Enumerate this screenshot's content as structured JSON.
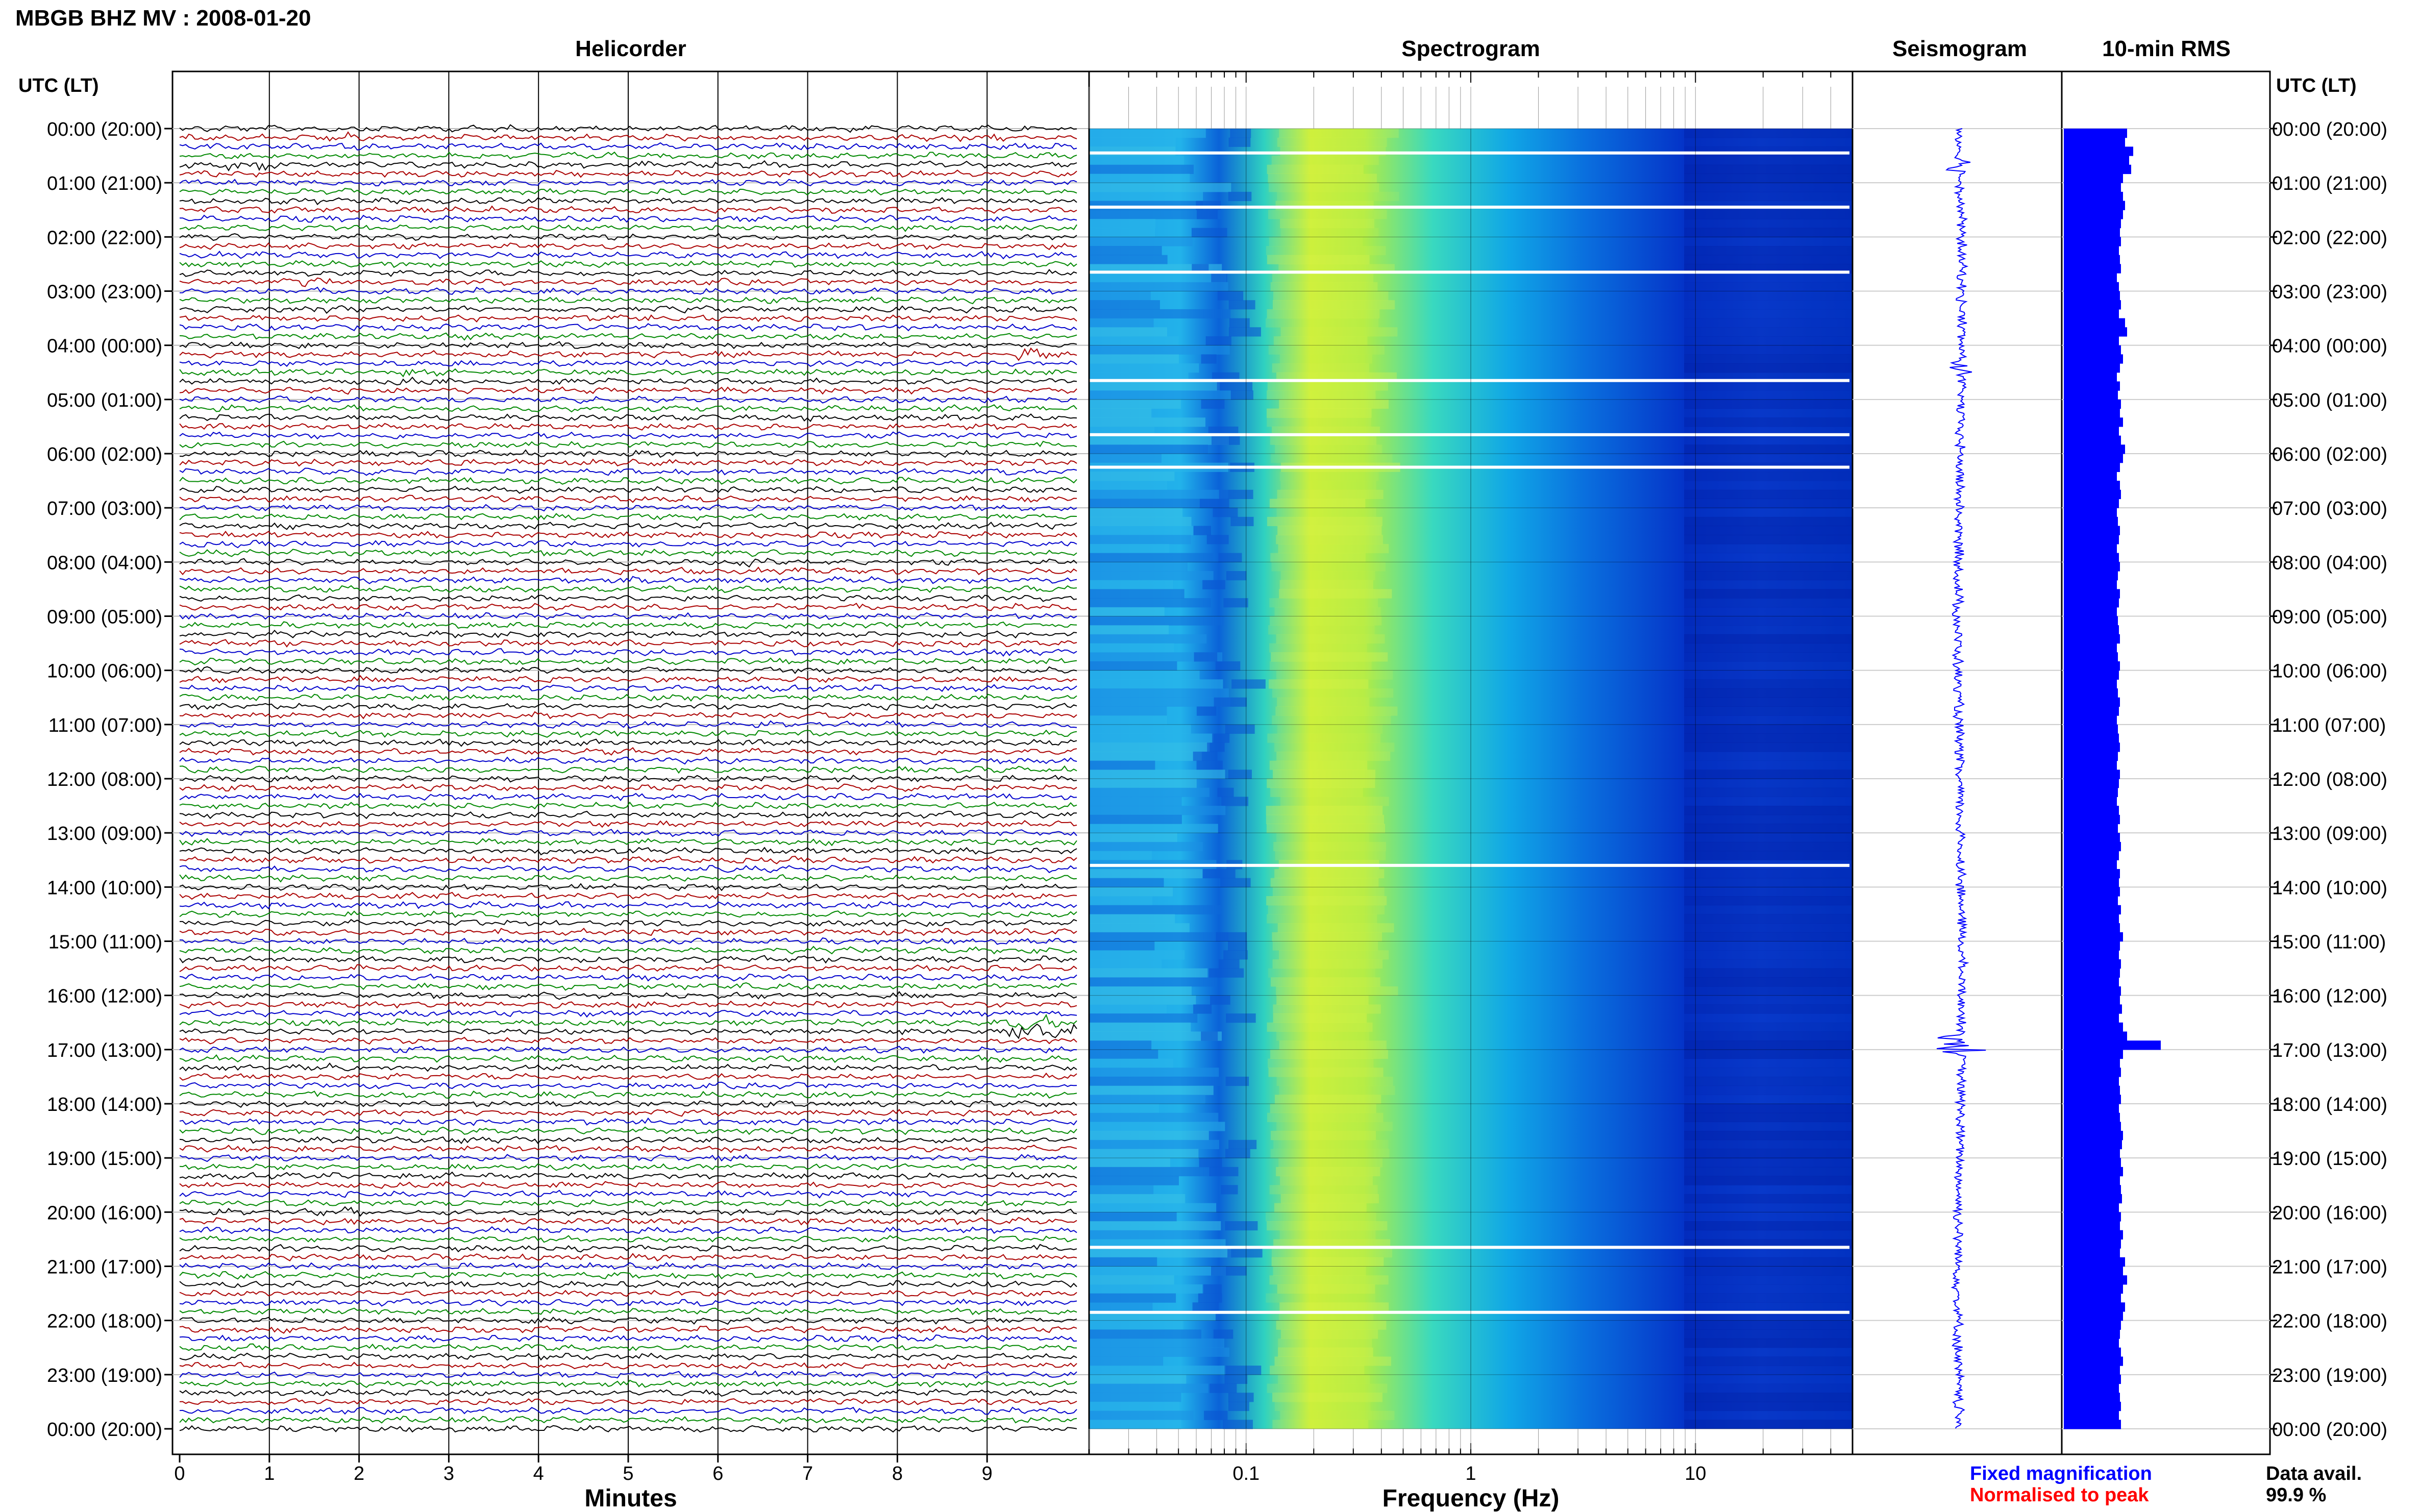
{
  "header": {
    "station_title": "MBGB BHZ MV : 2008-01-20",
    "left_axis_label": "UTC (LT)",
    "right_axis_label": "UTC (LT)"
  },
  "panels": {
    "helicorder": {
      "title": "Helicorder",
      "xlabel": "Minutes"
    },
    "spectrogram": {
      "title": "Spectrogram",
      "xlabel": "Frequency (Hz)"
    },
    "seismogram": {
      "title": "Seismogram"
    },
    "rms": {
      "title": "10-min RMS"
    }
  },
  "legend": {
    "fixed": "Fixed magnification",
    "normalised": "Normalised to peak",
    "fixed_color": "#0000ff",
    "normalised_color": "#ff0000"
  },
  "data_avail": {
    "label": "Data avail.",
    "value": "99.9 %"
  },
  "colors": {
    "trace_cycle": [
      "#000000",
      "#aa0000",
      "#0000cc",
      "#008800"
    ],
    "rms_bar": "#0000ff",
    "seismogram": "#0000ff"
  },
  "chart_data": {
    "type": "composite",
    "time_labels": [
      "00:00 (20:00)",
      "01:00 (21:00)",
      "02:00 (22:00)",
      "03:00 (23:00)",
      "04:00 (00:00)",
      "05:00 (01:00)",
      "06:00 (02:00)",
      "07:00 (03:00)",
      "08:00 (04:00)",
      "09:00 (05:00)",
      "10:00 (06:00)",
      "11:00 (07:00)",
      "12:00 (08:00)",
      "13:00 (09:00)",
      "14:00 (10:00)",
      "15:00 (11:00)",
      "16:00 (12:00)",
      "17:00 (13:00)",
      "18:00 (14:00)",
      "19:00 (15:00)",
      "20:00 (16:00)",
      "21:00 (17:00)",
      "22:00 (18:00)",
      "23:00 (19:00)",
      "00:00 (20:00)"
    ],
    "helicorder": {
      "minutes_ticks": [
        "0",
        "1",
        "2",
        "3",
        "4",
        "5",
        "6",
        "7",
        "8",
        "9"
      ],
      "xlim": [
        0,
        10
      ],
      "rows_per_hour": 6,
      "events": [
        {
          "hour": 0.2,
          "minute": 1.6,
          "amp": 1.6
        },
        {
          "hour": 0.7,
          "minute": 0.6,
          "amp": 2.2
        },
        {
          "hour": 0.05,
          "minute": 8.8,
          "amp": 1.4
        },
        {
          "hour": 2.8,
          "minute": 1.3,
          "amp": 1.6
        },
        {
          "hour": 3.3,
          "minute": 1.5,
          "amp": 1.4
        },
        {
          "hour": 4.2,
          "minute": 9.4,
          "amp": 2.0
        },
        {
          "hour": 4.6,
          "minute": 2.5,
          "amp": 1.4
        },
        {
          "hour": 8.0,
          "minute": 6.3,
          "amp": 1.5
        },
        {
          "hour": 16.6,
          "minute": 9.3,
          "amp": 3.2
        },
        {
          "hour": 17.3,
          "minute": 1.4,
          "amp": 1.3
        },
        {
          "hour": 20.1,
          "minute": 1.6,
          "amp": 1.5
        },
        {
          "hour": 21.2,
          "minute": 0.5,
          "amp": 1.6
        }
      ]
    },
    "spectrogram": {
      "x_scale": "log",
      "xlim": [
        0.02,
        50
      ],
      "tick_labels": [
        "0.1",
        "1",
        "10"
      ],
      "tick_values": [
        0.1,
        1,
        10
      ],
      "gap_hours": [
        0.45,
        1.45,
        2.65,
        4.65,
        5.65,
        6.25,
        13.6,
        20.65,
        21.85
      ]
    },
    "rms": {
      "values": [
        0.62,
        0.6,
        0.68,
        0.64,
        0.66,
        0.58,
        0.56,
        0.58,
        0.6,
        0.58,
        0.56,
        0.55,
        0.56,
        0.54,
        0.55,
        0.56,
        0.52,
        0.54,
        0.55,
        0.56,
        0.54,
        0.6,
        0.62,
        0.54,
        0.56,
        0.58,
        0.55,
        0.52,
        0.55,
        0.53,
        0.56,
        0.55,
        0.58,
        0.54,
        0.56,
        0.6,
        0.58,
        0.55,
        0.52,
        0.55,
        0.56,
        0.54,
        0.52,
        0.53,
        0.55,
        0.54,
        0.52,
        0.54,
        0.55,
        0.53,
        0.52,
        0.55,
        0.54,
        0.52,
        0.53,
        0.54,
        0.55,
        0.52,
        0.53,
        0.55,
        0.54,
        0.52,
        0.53,
        0.55,
        0.54,
        0.52,
        0.53,
        0.54,
        0.55,
        0.53,
        0.52,
        0.55,
        0.54,
        0.53,
        0.52,
        0.54,
        0.55,
        0.53,
        0.55,
        0.56,
        0.54,
        0.52,
        0.55,
        0.54,
        0.55,
        0.53,
        0.56,
        0.54,
        0.55,
        0.58,
        0.55,
        0.54,
        0.56,
        0.55,
        0.54,
        0.56,
        0.55,
        0.57,
        0.54,
        0.58,
        0.62,
        0.95,
        0.58,
        0.55,
        0.56,
        0.54,
        0.55,
        0.56,
        0.54,
        0.55,
        0.56,
        0.58,
        0.57,
        0.55,
        0.56,
        0.58,
        0.55,
        0.56,
        0.57,
        0.54,
        0.56,
        0.55,
        0.58,
        0.56,
        0.55,
        0.6,
        0.58,
        0.62,
        0.58,
        0.56,
        0.6,
        0.58,
        0.56,
        0.55,
        0.54,
        0.56,
        0.58,
        0.55,
        0.56,
        0.54,
        0.55,
        0.56,
        0.54,
        0.56
      ]
    }
  }
}
